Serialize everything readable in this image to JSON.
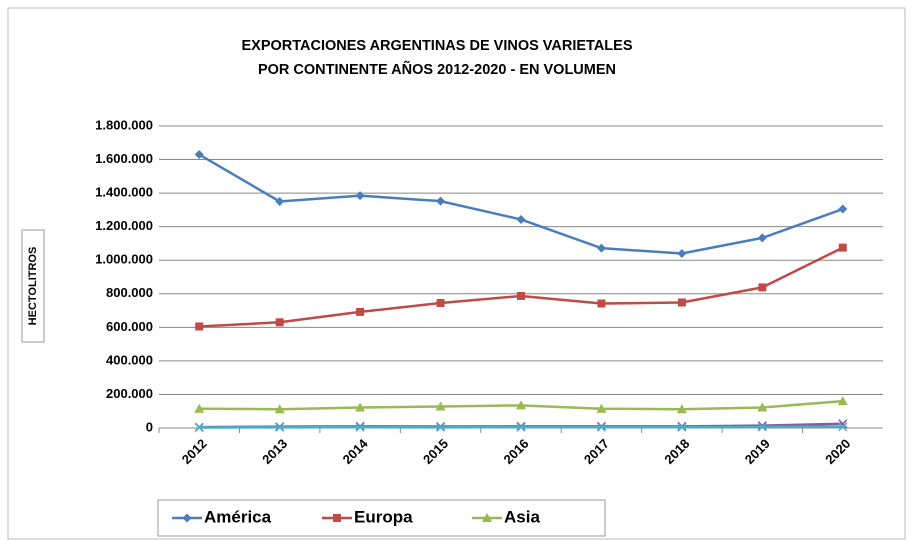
{
  "chart_data": {
    "type": "line",
    "title": [
      "EXPORTACIONES ARGENTINAS DE VINOS VARIETALES",
      "POR CONTINENTE AÑOS 2012-2020 - EN VOLUMEN"
    ],
    "y_label": "HECTOLITROS",
    "categories": [
      "2012",
      "2013",
      "2014",
      "2015",
      "2016",
      "2017",
      "2018",
      "2019",
      "2020"
    ],
    "series": [
      {
        "name": "América",
        "color": "#4a7ebb",
        "marker": "diamond",
        "values": [
          1630000,
          1350000,
          1385000,
          1352000,
          1243000,
          1072000,
          1040000,
          1133000,
          1305000
        ]
      },
      {
        "name": "Europa",
        "color": "#be4b48",
        "marker": "square",
        "values": [
          605000,
          630000,
          692000,
          745000,
          787000,
          742000,
          748000,
          838000,
          1075000
        ]
      },
      {
        "name": "Asia",
        "color": "#98b954",
        "marker": "triangle",
        "values": [
          115000,
          112000,
          122000,
          128000,
          135000,
          115000,
          112000,
          122000,
          160000
        ]
      },
      {
        "color": "#7d60a0",
        "marker": "x",
        "values": [
          5000,
          8000,
          10000,
          9000,
          10000,
          10000,
          10000,
          14000,
          25000
        ]
      },
      {
        "color": "#4bacc6",
        "marker": "x",
        "values": [
          3000,
          4000,
          5000,
          4000,
          5000,
          5000,
          5000,
          6000,
          8000
        ]
      }
    ],
    "ylim": [
      0,
      1800000
    ],
    "yticks": [
      0,
      {
        "value": 200000,
        "label": "200.000"
      },
      {
        "value": 400000,
        "label": "400.000"
      },
      {
        "value": 600000,
        "label": "600.000"
      },
      {
        "value": 800000,
        "label": "800.000"
      },
      {
        "value": 1000000,
        "label": "1.000.000"
      },
      {
        "value": 1200000,
        "label": "1.200.000"
      },
      {
        "value": 1400000,
        "label": "1.400.000"
      },
      {
        "value": 1600000,
        "label": "1.600.000"
      },
      {
        "value": 1800000,
        "label": "1.800.000"
      }
    ],
    "grid": true
  }
}
